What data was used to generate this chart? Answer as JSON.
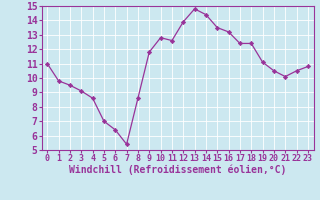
{
  "x": [
    0,
    1,
    2,
    3,
    4,
    5,
    6,
    7,
    8,
    9,
    10,
    11,
    12,
    13,
    14,
    15,
    16,
    17,
    18,
    19,
    20,
    21,
    22,
    23
  ],
  "y": [
    11.0,
    9.8,
    9.5,
    9.1,
    8.6,
    7.0,
    6.4,
    5.4,
    8.6,
    11.8,
    12.8,
    12.6,
    13.9,
    14.8,
    14.4,
    13.5,
    13.2,
    12.4,
    12.4,
    11.1,
    10.5,
    10.1,
    10.5,
    10.8
  ],
  "line_color": "#993399",
  "marker_color": "#993399",
  "bg_color": "#cce8f0",
  "grid_color": "#aaaaaa",
  "xlabel": "Windchill (Refroidissement éolien,°C)",
  "xlabel_color": "#993399",
  "tick_color": "#993399",
  "ylim": [
    5,
    15
  ],
  "xlim": [
    -0.5,
    23.5
  ],
  "yticks": [
    5,
    6,
    7,
    8,
    9,
    10,
    11,
    12,
    13,
    14,
    15
  ],
  "xticks": [
    0,
    1,
    2,
    3,
    4,
    5,
    6,
    7,
    8,
    9,
    10,
    11,
    12,
    13,
    14,
    15,
    16,
    17,
    18,
    19,
    20,
    21,
    22,
    23
  ],
  "tick_fontsize": 6.0,
  "xlabel_fontsize": 7.0,
  "ytick_fontsize": 7.0
}
